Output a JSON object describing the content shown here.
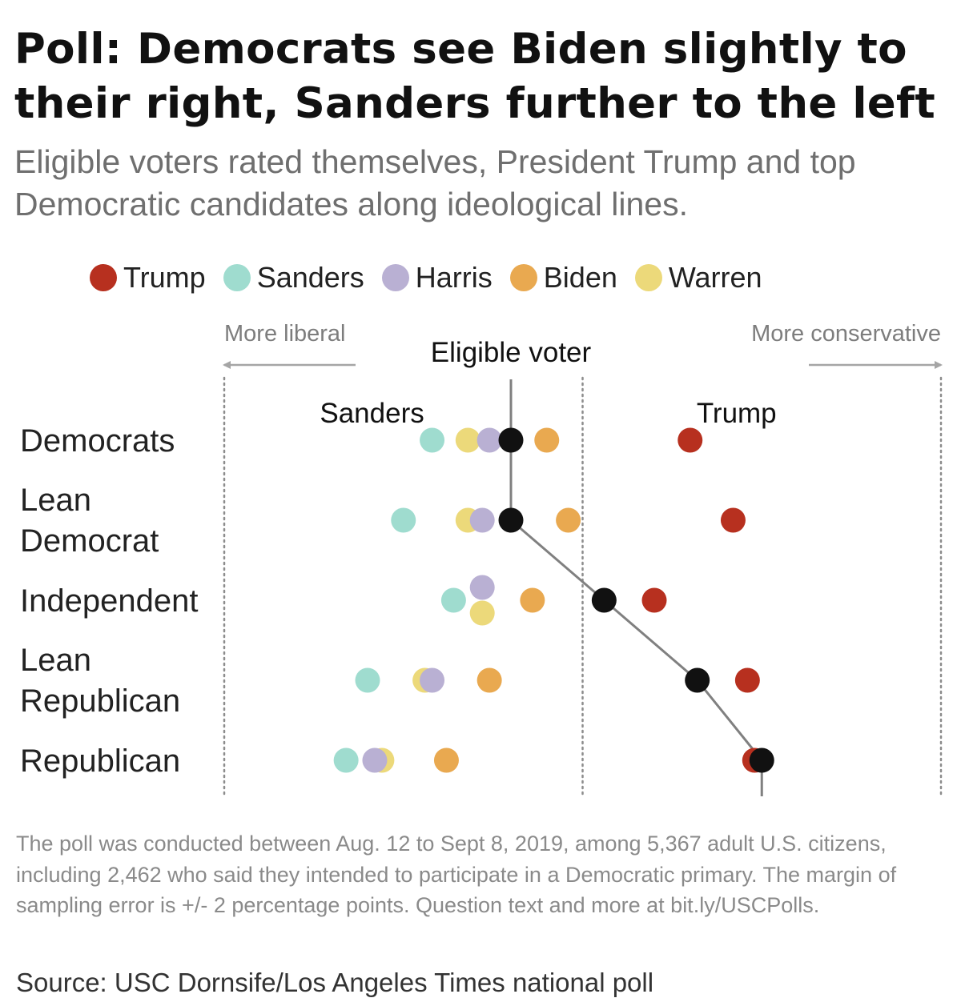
{
  "title": "Poll: Democrats see Biden slightly to their right, Sanders further to the left",
  "subtitle": "Eligible voters rated themselves, President Trump and top Democratic candidates along ideological lines.",
  "chart_data": {
    "type": "scatter",
    "direction_labels": {
      "left": "More liberal",
      "right": "More conservative"
    },
    "reference_series": "Eligible voter",
    "annotations": [
      {
        "text": "Sanders",
        "series": "Sanders",
        "row": 0
      },
      {
        "text": "Trump",
        "series": "Trump",
        "row": 0
      }
    ],
    "categories": [
      "Democrats",
      "Lean Democrat",
      "Independent",
      "Lean Republican",
      "Republican"
    ],
    "category_lines": [
      [
        "Democrats"
      ],
      [
        "Lean",
        "Democrat"
      ],
      [
        "Independent"
      ],
      [
        "Lean",
        "Republican"
      ],
      [
        "Republican"
      ]
    ],
    "xlim": [
      0,
      1
    ],
    "gridlines": [
      0,
      0.5,
      1
    ],
    "series": [
      {
        "name": "Trump",
        "color": "#b7301f",
        "values": [
          0.65,
          0.71,
          0.6,
          0.73,
          0.74
        ]
      },
      {
        "name": "Sanders",
        "color": "#9fdccf",
        "values": [
          0.29,
          0.25,
          0.32,
          0.2,
          0.17
        ]
      },
      {
        "name": "Harris",
        "color": "#b9b0d3",
        "values": [
          0.37,
          0.36,
          0.36,
          0.29,
          0.21
        ]
      },
      {
        "name": "Biden",
        "color": "#e9a950",
        "values": [
          0.45,
          0.48,
          0.43,
          0.37,
          0.31
        ]
      },
      {
        "name": "Warren",
        "color": "#ecd97a",
        "values": [
          0.34,
          0.34,
          0.36,
          0.28,
          0.22
        ]
      },
      {
        "name": "Eligible voter",
        "color": "#111111",
        "values": [
          0.4,
          0.4,
          0.53,
          0.66,
          0.75
        ]
      }
    ]
  },
  "footnote": "The poll was conducted between Aug. 12 to Sept 8, 2019, among 5,367 adult U.S. citizens, including 2,462 who said they intended to participate in a Democratic primary. The margin of sampling error is +/- 2 percentage points. Question text and more at bit.ly/USCPolls.",
  "source": "Source: USC Dornsife/Los Angeles Times national poll"
}
